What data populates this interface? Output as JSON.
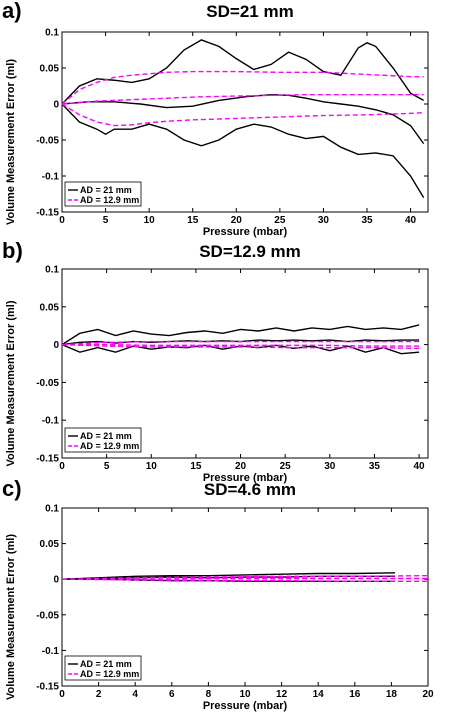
{
  "chart_data": [
    {
      "type": "line",
      "panel": "a)",
      "title": "SD=21 mm",
      "xlabel": "Pressure (mbar)",
      "ylabel": "Volume Measurement Error (ml)",
      "xlim": [
        0,
        42
      ],
      "ylim": [
        -0.15,
        0.1
      ],
      "xticks": [
        0,
        5,
        10,
        15,
        20,
        25,
        30,
        35,
        40
      ],
      "xtick_labels": [
        "0",
        "5",
        "10",
        "15",
        "20",
        "25",
        "30",
        "35",
        "40"
      ],
      "yticks": [
        -0.15,
        -0.1,
        -0.05,
        0,
        0.05,
        0.1
      ],
      "ytick_labels": [
        "-0.15",
        "-0.1",
        "-0.05",
        "0",
        "0.05",
        "0.1"
      ],
      "legend": {
        "position": "bottom-left",
        "entries": [
          "AD = 21 mm",
          "AD = 12.9 mm"
        ]
      },
      "series": [
        {
          "name": "AD = 21 mm",
          "group": "upper",
          "color": "#000000",
          "dash": "solid",
          "x": [
            0,
            2,
            4,
            6,
            8,
            10,
            12,
            14,
            16,
            18,
            20,
            22,
            24,
            26,
            28,
            30,
            32,
            34,
            35,
            36,
            38,
            40,
            41.5
          ],
          "y": [
            0,
            0.025,
            0.035,
            0.033,
            0.03,
            0.035,
            0.05,
            0.075,
            0.089,
            0.08,
            0.063,
            0.048,
            0.055,
            0.072,
            0.062,
            0.045,
            0.04,
            0.078,
            0.085,
            0.08,
            0.05,
            0.015,
            0.005
          ]
        },
        {
          "name": "AD = 21 mm",
          "group": "middle",
          "color": "#000000",
          "dash": "solid",
          "x": [
            0,
            3,
            6,
            9,
            12,
            15,
            18,
            21,
            24,
            26,
            28,
            30,
            32,
            34,
            36,
            38,
            40,
            41.5
          ],
          "y": [
            0,
            0.003,
            0.003,
            0.0,
            -0.005,
            -0.003,
            0.005,
            0.01,
            0.013,
            0.012,
            0.008,
            0.003,
            0.0,
            -0.003,
            -0.008,
            -0.015,
            -0.03,
            -0.055
          ]
        },
        {
          "name": "AD = 21 mm",
          "group": "lower",
          "color": "#000000",
          "dash": "solid",
          "x": [
            0,
            2,
            4,
            5,
            6,
            8,
            10,
            12,
            14,
            16,
            18,
            20,
            22,
            24,
            26,
            28,
            30,
            32,
            34,
            36,
            38,
            40,
            41.5
          ],
          "y": [
            0,
            -0.025,
            -0.035,
            -0.042,
            -0.035,
            -0.035,
            -0.028,
            -0.035,
            -0.05,
            -0.058,
            -0.05,
            -0.035,
            -0.028,
            -0.032,
            -0.042,
            -0.048,
            -0.045,
            -0.06,
            -0.07,
            -0.068,
            -0.072,
            -0.1,
            -0.13
          ]
        },
        {
          "name": "AD = 12.9 mm",
          "group": "upper",
          "color": "#ff00ff",
          "dash": "dashed",
          "x": [
            0,
            2,
            4,
            6,
            8,
            10,
            12,
            15,
            20,
            25,
            30,
            35,
            40,
            41.5
          ],
          "y": [
            0,
            0.02,
            0.03,
            0.037,
            0.04,
            0.042,
            0.044,
            0.045,
            0.045,
            0.044,
            0.044,
            0.041,
            0.038,
            0.038
          ]
        },
        {
          "name": "AD = 12.9 mm",
          "group": "middle",
          "color": "#ff00ff",
          "dash": "dashed",
          "x": [
            0,
            4,
            8,
            12,
            16,
            20,
            24,
            28,
            32,
            36,
            40,
            41.5
          ],
          "y": [
            0,
            0.004,
            0.006,
            0.008,
            0.01,
            0.011,
            0.012,
            0.013,
            0.013,
            0.013,
            0.013,
            0.013
          ]
        },
        {
          "name": "AD = 12.9 mm",
          "group": "lower",
          "color": "#ff00ff",
          "dash": "dashed",
          "x": [
            0,
            2,
            4,
            6,
            8,
            10,
            12,
            15,
            20,
            25,
            30,
            35,
            40,
            41.5
          ],
          "y": [
            0,
            -0.015,
            -0.025,
            -0.03,
            -0.029,
            -0.026,
            -0.024,
            -0.022,
            -0.02,
            -0.018,
            -0.016,
            -0.015,
            -0.013,
            -0.012
          ]
        }
      ]
    },
    {
      "type": "line",
      "panel": "b)",
      "title": "SD=12.9 mm",
      "xlabel": "Pressure (mbar)",
      "ylabel": "Volume Measurement Error (ml)",
      "xlim": [
        0,
        41
      ],
      "ylim": [
        -0.15,
        0.1
      ],
      "xticks": [
        0,
        5,
        10,
        15,
        20,
        25,
        30,
        35,
        40
      ],
      "xtick_labels": [
        "0",
        "5",
        "10",
        "15",
        "20",
        "25",
        "30",
        "35",
        "40"
      ],
      "yticks": [
        -0.15,
        -0.1,
        -0.05,
        0,
        0.05,
        0.1
      ],
      "ytick_labels": [
        "-0.15",
        "-0.1",
        "-0.05",
        "0",
        "0.05",
        "0.1"
      ],
      "legend": {
        "position": "bottom-left",
        "entries": [
          "AD = 21 mm",
          "AD = 12.9 mm"
        ]
      },
      "series": [
        {
          "name": "AD = 21 mm",
          "group": "upper",
          "color": "#000000",
          "dash": "solid",
          "x": [
            0,
            2,
            4,
            6,
            8,
            10,
            12,
            14,
            16,
            18,
            20,
            22,
            24,
            26,
            28,
            30,
            32,
            34,
            36,
            38,
            40
          ],
          "y": [
            0,
            0.015,
            0.02,
            0.012,
            0.018,
            0.014,
            0.012,
            0.016,
            0.018,
            0.015,
            0.02,
            0.018,
            0.022,
            0.018,
            0.022,
            0.02,
            0.024,
            0.02,
            0.022,
            0.02,
            0.026
          ]
        },
        {
          "name": "AD = 21 mm",
          "group": "middle",
          "color": "#000000",
          "dash": "solid",
          "x": [
            0,
            2,
            4,
            6,
            8,
            10,
            12,
            14,
            16,
            18,
            20,
            22,
            24,
            26,
            28,
            30,
            32,
            34,
            36,
            38,
            40
          ],
          "y": [
            0,
            0.003,
            0.004,
            0.002,
            0.004,
            0.003,
            0.004,
            0.005,
            0.004,
            0.005,
            0.004,
            0.006,
            0.005,
            0.006,
            0.005,
            0.006,
            0.004,
            0.006,
            0.005,
            0.006,
            0.006
          ]
        },
        {
          "name": "AD = 21 mm",
          "group": "lower",
          "color": "#000000",
          "dash": "solid",
          "x": [
            0,
            2,
            4,
            6,
            8,
            10,
            12,
            14,
            16,
            18,
            20,
            22,
            24,
            26,
            28,
            30,
            32,
            34,
            36,
            38,
            40
          ],
          "y": [
            0,
            -0.01,
            -0.004,
            -0.01,
            -0.002,
            -0.006,
            -0.003,
            -0.004,
            -0.001,
            -0.006,
            -0.002,
            -0.004,
            -0.001,
            -0.005,
            -0.002,
            -0.008,
            -0.002,
            -0.01,
            -0.004,
            -0.012,
            -0.01
          ]
        },
        {
          "name": "AD = 12.9 mm",
          "group": "upper",
          "color": "#ff00ff",
          "dash": "dashed",
          "x": [
            0,
            5,
            10,
            15,
            20,
            25,
            30,
            35,
            40
          ],
          "y": [
            0,
            0.003,
            0.004,
            0.004,
            0.004,
            0.004,
            0.004,
            0.004,
            0.004
          ]
        },
        {
          "name": "AD = 12.9 mm",
          "group": "middle",
          "color": "#ff00ff",
          "dash": "dashed",
          "x": [
            0,
            5,
            10,
            15,
            20,
            25,
            30,
            35,
            40
          ],
          "y": [
            0,
            0.0,
            -0.001,
            -0.001,
            -0.001,
            -0.001,
            -0.001,
            -0.002,
            -0.002
          ]
        },
        {
          "name": "AD = 12.9 mm",
          "group": "lower",
          "color": "#ff00ff",
          "dash": "dashed",
          "x": [
            0,
            5,
            10,
            15,
            20,
            25,
            30,
            35,
            40
          ],
          "y": [
            0,
            -0.002,
            -0.003,
            -0.003,
            -0.003,
            -0.004,
            -0.004,
            -0.004,
            -0.005
          ]
        }
      ]
    },
    {
      "type": "line",
      "panel": "c)",
      "title": "SD=4.6 mm",
      "xlabel": "Pressure (mbar)",
      "ylabel": "Volume Measurement Error (ml)",
      "xlim": [
        0,
        20
      ],
      "ylim": [
        -0.15,
        0.1
      ],
      "xticks": [
        0,
        2,
        4,
        6,
        8,
        10,
        12,
        14,
        16,
        18,
        20
      ],
      "xtick_labels": [
        "0",
        "2",
        "4",
        "6",
        "8",
        "10",
        "12",
        "14",
        "16",
        "18",
        "20"
      ],
      "yticks": [
        -0.15,
        -0.1,
        -0.05,
        0,
        0.05,
        0.1
      ],
      "ytick_labels": [
        "-0.15",
        "-0.1",
        "-0.05",
        "0",
        "0.05",
        "0.1"
      ],
      "legend": {
        "position": "bottom-left",
        "entries": [
          "AD = 21 mm",
          "AD = 12.9 mm"
        ]
      },
      "series": [
        {
          "name": "AD = 21 mm",
          "group": "upper",
          "color": "#000000",
          "dash": "solid",
          "x": [
            0,
            2,
            4,
            6,
            8,
            10,
            12,
            14,
            16,
            18.2
          ],
          "y": [
            0,
            0.002,
            0.004,
            0.005,
            0.005,
            0.006,
            0.007,
            0.008,
            0.008,
            0.009
          ]
        },
        {
          "name": "AD = 21 mm",
          "group": "middle",
          "color": "#000000",
          "dash": "solid",
          "x": [
            0,
            2,
            4,
            6,
            8,
            10,
            12,
            14,
            16,
            18.2
          ],
          "y": [
            0,
            0.001,
            0.002,
            0.003,
            0.002,
            0.003,
            0.003,
            0.004,
            0.004,
            0.004
          ]
        },
        {
          "name": "AD = 21 mm",
          "group": "lower",
          "color": "#000000",
          "dash": "solid",
          "x": [
            0,
            2,
            4,
            6,
            8,
            10,
            12,
            14,
            16,
            18.2
          ],
          "y": [
            0,
            0.0,
            -0.001,
            -0.002,
            -0.002,
            -0.003,
            -0.003,
            -0.003,
            -0.003,
            -0.003
          ]
        },
        {
          "name": "AD = 12.9 mm",
          "group": "upper",
          "color": "#ff00ff",
          "dash": "dashed",
          "x": [
            0,
            4,
            8,
            12,
            16,
            20
          ],
          "y": [
            0,
            0.002,
            0.003,
            0.004,
            0.004,
            0.005
          ]
        },
        {
          "name": "AD = 12.9 mm",
          "group": "middle",
          "color": "#ff00ff",
          "dash": "dashed",
          "x": [
            0,
            4,
            8,
            12,
            16,
            20
          ],
          "y": [
            0,
            0.0,
            0.001,
            0.001,
            0.001,
            0.001
          ]
        },
        {
          "name": "AD = 12.9 mm",
          "group": "lower",
          "color": "#ff00ff",
          "dash": "dashed",
          "x": [
            0,
            4,
            8,
            12,
            16,
            20
          ],
          "y": [
            0,
            -0.001,
            -0.002,
            -0.002,
            -0.003,
            -0.003
          ]
        }
      ]
    }
  ]
}
